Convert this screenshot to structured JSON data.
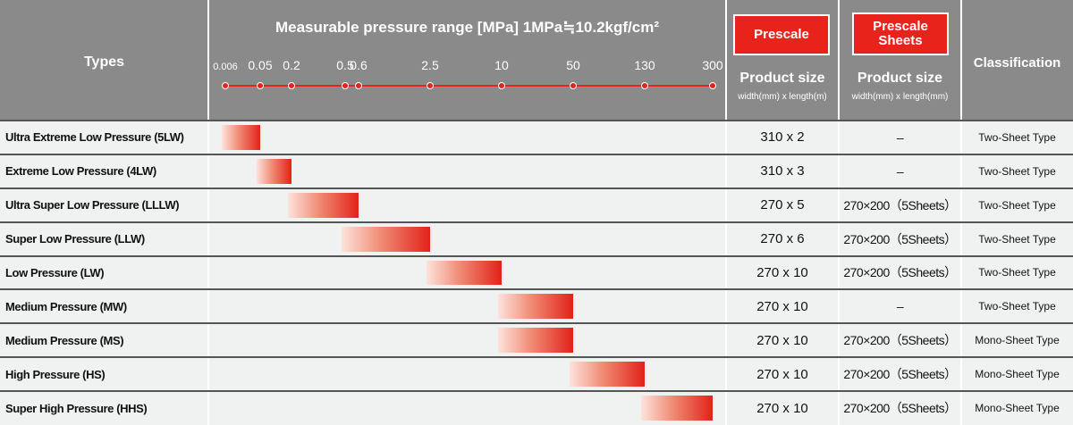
{
  "header": {
    "types": "Types",
    "range_title": "Measurable pressure range [MPa] 1MPa≒10.2kgf/cm²",
    "scale_ticks": [
      0.006,
      0.05,
      0.2,
      0.5,
      0.6,
      2.5,
      10,
      50,
      130,
      300
    ],
    "prescale": "Prescale",
    "prescale_sheets": "Prescale Sheets",
    "product_size_1": "Product size",
    "product_size_unit_1": "width(mm) x length(m)",
    "product_size_2": "Product size",
    "product_size_unit_2": "width(mm) x length(mm)",
    "classification": "Classification"
  },
  "rows": [
    {
      "type": "Ultra Extreme Low Pressure (5LW)",
      "range": [
        0.006,
        0.05
      ],
      "size": "310 x 2",
      "sheets": "–",
      "classification": "Two-Sheet Type"
    },
    {
      "type": "Extreme Low Pressure (4LW)",
      "range": [
        0.05,
        0.2
      ],
      "size": "310 x 3",
      "sheets": "–",
      "classification": "Two-Sheet Type"
    },
    {
      "type": "Ultra Super Low Pressure (LLLW)",
      "range": [
        0.2,
        0.6
      ],
      "size": "270 x 5",
      "sheets": "270×200（5Sheets）",
      "classification": "Two-Sheet Type"
    },
    {
      "type": "Super Low Pressure (LLW)",
      "range": [
        0.5,
        2.5
      ],
      "size": "270 x 6",
      "sheets": "270×200（5Sheets）",
      "classification": "Two-Sheet Type"
    },
    {
      "type": "Low Pressure (LW)",
      "range": [
        2.5,
        10
      ],
      "size": "270 x 10",
      "sheets": "270×200（5Sheets）",
      "classification": "Two-Sheet Type"
    },
    {
      "type": "Medium Pressure (MW)",
      "range": [
        10,
        50
      ],
      "size": "270 x 10",
      "sheets": "–",
      "classification": "Two-Sheet Type"
    },
    {
      "type": "Medium Pressure (MS)",
      "range": [
        10,
        50
      ],
      "size": "270 x 10",
      "sheets": "270×200（5Sheets）",
      "classification": "Mono-Sheet Type"
    },
    {
      "type": "High Pressure (HS)",
      "range": [
        50,
        130
      ],
      "size": "270 x 10",
      "sheets": "270×200（5Sheets）",
      "classification": "Mono-Sheet Type"
    },
    {
      "type": "Super High Pressure (HHS)",
      "range": [
        130,
        300
      ],
      "size": "270 x 10",
      "sheets": "270×200（5Sheets）",
      "classification": "Mono-Sheet Type"
    }
  ]
}
